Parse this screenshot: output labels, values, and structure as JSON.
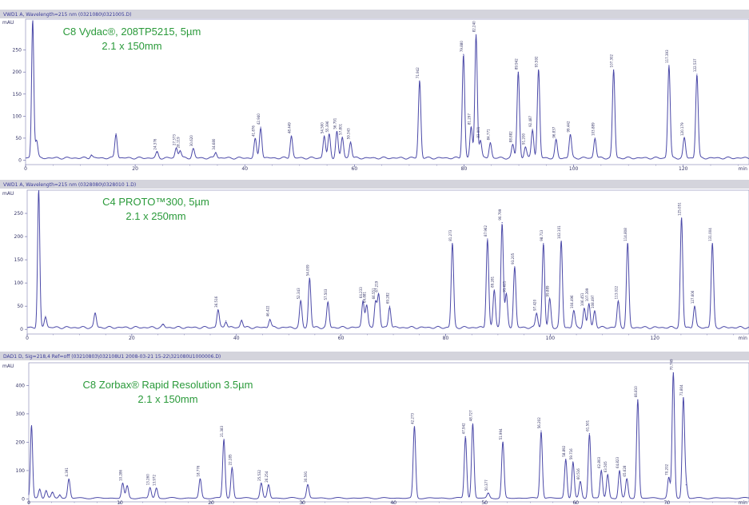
{
  "chart_data": [
    {
      "type": "line",
      "header": "VWD1 A, Wavelength=215 nm (0321080\\0321005.D)",
      "title": "C8 Vydac®, 208TP5215, 5µm",
      "subtitle": "2.1 x 150mm",
      "ylabel": "mAU",
      "xlabel": "min",
      "xlim": [
        0,
        132
      ],
      "ylim": [
        -10,
        320
      ],
      "xticks": [
        0,
        20,
        40,
        60,
        80,
        100,
        120
      ],
      "yticks": [
        0,
        50,
        100,
        150,
        200,
        250
      ],
      "baseline": 5,
      "void_peak": {
        "x": 1.3,
        "y": 320
      },
      "peaks": [
        {
          "x": 2.0,
          "y": 45,
          "label": ""
        },
        {
          "x": 12,
          "y": 12,
          "label": ""
        },
        {
          "x": 16.5,
          "y": 60,
          "label": ""
        },
        {
          "x": 24,
          "y": 18,
          "label": "24.376"
        },
        {
          "x": 27.5,
          "y": 28,
          "label": "27.373"
        },
        {
          "x": 28.2,
          "y": 22,
          "label": "28.119"
        },
        {
          "x": 30.6,
          "y": 26,
          "label": "30.620"
        },
        {
          "x": 34.7,
          "y": 18,
          "label": "34.680"
        },
        {
          "x": 41.9,
          "y": 48,
          "label": "41.876"
        },
        {
          "x": 42.9,
          "y": 75,
          "label": "42.940"
        },
        {
          "x": 48.5,
          "y": 55,
          "label": "48.449"
        },
        {
          "x": 54.5,
          "y": 55,
          "label": "54.500"
        },
        {
          "x": 55.4,
          "y": 58,
          "label": "55.396"
        },
        {
          "x": 56.8,
          "y": 65,
          "label": "56.791"
        },
        {
          "x": 57.8,
          "y": 52,
          "label": "57.801"
        },
        {
          "x": 59.3,
          "y": 42,
          "label": "59.343"
        },
        {
          "x": 71.9,
          "y": 180,
          "label": "71.942"
        },
        {
          "x": 79.9,
          "y": 240,
          "label": "79.880"
        },
        {
          "x": 81.3,
          "y": 75,
          "label": "81.297"
        },
        {
          "x": 82.2,
          "y": 285,
          "label": "82.240"
        },
        {
          "x": 83.0,
          "y": 45,
          "label": "83.001"
        },
        {
          "x": 84.8,
          "y": 40,
          "label": "84.771"
        },
        {
          "x": 88.9,
          "y": 35,
          "label": "88.882"
        },
        {
          "x": 89.9,
          "y": 200,
          "label": "89.942"
        },
        {
          "x": 91.2,
          "y": 30,
          "label": "91.200"
        },
        {
          "x": 92.5,
          "y": 70,
          "label": "92.487"
        },
        {
          "x": 93.6,
          "y": 205,
          "label": "93.592"
        },
        {
          "x": 96.8,
          "y": 45,
          "label": "96.837"
        },
        {
          "x": 99.4,
          "y": 58,
          "label": "99.442"
        },
        {
          "x": 103.9,
          "y": 50,
          "label": "103.889"
        },
        {
          "x": 107.3,
          "y": 205,
          "label": "107.302"
        },
        {
          "x": 117.4,
          "y": 215,
          "label": "117.393"
        },
        {
          "x": 120.2,
          "y": 50,
          "label": "120.179"
        },
        {
          "x": 122.5,
          "y": 195,
          "label": "122.537"
        }
      ]
    },
    {
      "type": "line",
      "header": "VWD1 A, Wavelength=215 nm (0328080\\0328010 1.D)",
      "title": "C4 PROTO™300, 5µm",
      "subtitle": "2.1 x 250mm",
      "ylabel": "mAU",
      "xlabel": "min",
      "xlim": [
        0,
        138
      ],
      "ylim": [
        -10,
        300
      ],
      "xticks": [
        0,
        20,
        40,
        60,
        80,
        100,
        120
      ],
      "yticks": [
        0,
        50,
        100,
        150,
        200,
        250
      ],
      "baseline": 4,
      "void_peak": {
        "x": 2.2,
        "y": 300
      },
      "peaks": [
        {
          "x": 3.5,
          "y": 28,
          "label": ""
        },
        {
          "x": 13,
          "y": 35,
          "label": ""
        },
        {
          "x": 26,
          "y": 10,
          "label": ""
        },
        {
          "x": 36.5,
          "y": 42,
          "label": "36.516"
        },
        {
          "x": 38,
          "y": 18,
          "label": ""
        },
        {
          "x": 41,
          "y": 20,
          "label": ""
        },
        {
          "x": 46.4,
          "y": 22,
          "label": "46.422"
        },
        {
          "x": 52.3,
          "y": 60,
          "label": "52.343"
        },
        {
          "x": 54.0,
          "y": 110,
          "label": "54.009"
        },
        {
          "x": 57.5,
          "y": 58,
          "label": "57.503"
        },
        {
          "x": 64.2,
          "y": 62,
          "label": "64.233"
        },
        {
          "x": 64.9,
          "y": 52,
          "label": "64.881"
        },
        {
          "x": 66.6,
          "y": 60,
          "label": "66.551"
        },
        {
          "x": 67.2,
          "y": 75,
          "label": "67.219"
        },
        {
          "x": 69.3,
          "y": 50,
          "label": "69.282"
        },
        {
          "x": 81.3,
          "y": 185,
          "label": "81.273"
        },
        {
          "x": 88.0,
          "y": 195,
          "label": "87.962"
        },
        {
          "x": 89.3,
          "y": 85,
          "label": "89.281"
        },
        {
          "x": 90.8,
          "y": 230,
          "label": "90.799"
        },
        {
          "x": 91.6,
          "y": 75,
          "label": "91.621"
        },
        {
          "x": 93.2,
          "y": 135,
          "label": "93.205"
        },
        {
          "x": 97.4,
          "y": 35,
          "label": "97.420"
        },
        {
          "x": 98.7,
          "y": 185,
          "label": "98.713"
        },
        {
          "x": 99.9,
          "y": 65,
          "label": "99.889"
        },
        {
          "x": 102.1,
          "y": 190,
          "label": "102.101"
        },
        {
          "x": 104.5,
          "y": 40,
          "label": "104.496"
        },
        {
          "x": 106.5,
          "y": 45,
          "label": "106.451"
        },
        {
          "x": 107.4,
          "y": 55,
          "label": "107.399"
        },
        {
          "x": 108.5,
          "y": 40,
          "label": "108.497"
        },
        {
          "x": 113.0,
          "y": 60,
          "label": "113.022"
        },
        {
          "x": 114.8,
          "y": 185,
          "label": "114.808"
        },
        {
          "x": 125.1,
          "y": 240,
          "label": "125.051"
        },
        {
          "x": 127.6,
          "y": 50,
          "label": "127.606"
        },
        {
          "x": 131.0,
          "y": 185,
          "label": "131.004"
        }
      ]
    },
    {
      "type": "line",
      "header": "DAD1 D, Sig=218,4 Ref=off (03210803\\032108U1 2008-03-21 15-22\\321080U1000006.D)",
      "title": "C8 Zorbax® Rapid Resolution 3.5µm",
      "subtitle": "2.1 x 150mm",
      "ylabel": "mAU",
      "xlabel": "min",
      "xlim": [
        0,
        79
      ],
      "ylim": [
        -10,
        480
      ],
      "xticks": [
        0,
        10,
        20,
        30,
        40,
        50,
        60,
        70
      ],
      "yticks": [
        0,
        100,
        200,
        300,
        400
      ],
      "baseline": 3,
      "void_peak": {
        "x": 0.3,
        "y": 260
      },
      "peaks": [
        {
          "x": 1.2,
          "y": 35,
          "label": ""
        },
        {
          "x": 1.9,
          "y": 30,
          "label": ""
        },
        {
          "x": 2.6,
          "y": 22,
          "label": ""
        },
        {
          "x": 3.4,
          "y": 15,
          "label": ""
        },
        {
          "x": 4.4,
          "y": 70,
          "label": "4.391"
        },
        {
          "x": 10.3,
          "y": 55,
          "label": "10.286"
        },
        {
          "x": 10.8,
          "y": 45,
          "label": ""
        },
        {
          "x": 13.3,
          "y": 40,
          "label": "13.260"
        },
        {
          "x": 14.0,
          "y": 38,
          "label": "13.972"
        },
        {
          "x": 18.8,
          "y": 70,
          "label": "18.776"
        },
        {
          "x": 21.4,
          "y": 210,
          "label": "21.383"
        },
        {
          "x": 22.3,
          "y": 110,
          "label": "22.285"
        },
        {
          "x": 25.5,
          "y": 55,
          "label": "25.532"
        },
        {
          "x": 26.3,
          "y": 50,
          "label": "26.254"
        },
        {
          "x": 30.6,
          "y": 50,
          "label": "30.591"
        },
        {
          "x": 42.3,
          "y": 255,
          "label": "42.273"
        },
        {
          "x": 47.9,
          "y": 220,
          "label": "47.942"
        },
        {
          "x": 48.7,
          "y": 265,
          "label": "48.727"
        },
        {
          "x": 50.4,
          "y": 20,
          "label": "50.377"
        },
        {
          "x": 52.0,
          "y": 200,
          "label": "51.994"
        },
        {
          "x": 56.2,
          "y": 240,
          "label": "56.202"
        },
        {
          "x": 58.9,
          "y": 140,
          "label": "58.892"
        },
        {
          "x": 59.7,
          "y": 130,
          "label": "59.716"
        },
        {
          "x": 60.5,
          "y": 60,
          "label": "60.516"
        },
        {
          "x": 61.5,
          "y": 230,
          "label": "61.501"
        },
        {
          "x": 62.8,
          "y": 100,
          "label": "62.803"
        },
        {
          "x": 63.5,
          "y": 85,
          "label": "63.505"
        },
        {
          "x": 64.8,
          "y": 100,
          "label": "64.823"
        },
        {
          "x": 65.6,
          "y": 70,
          "label": "65.628"
        },
        {
          "x": 66.8,
          "y": 350,
          "label": "66.810"
        },
        {
          "x": 70.2,
          "y": 75,
          "label": "70.202"
        },
        {
          "x": 70.7,
          "y": 445,
          "label": "70.749"
        },
        {
          "x": 71.8,
          "y": 355,
          "label": "71.804"
        },
        {
          "x": 72.1,
          "y": 50,
          "label": ""
        }
      ]
    }
  ]
}
